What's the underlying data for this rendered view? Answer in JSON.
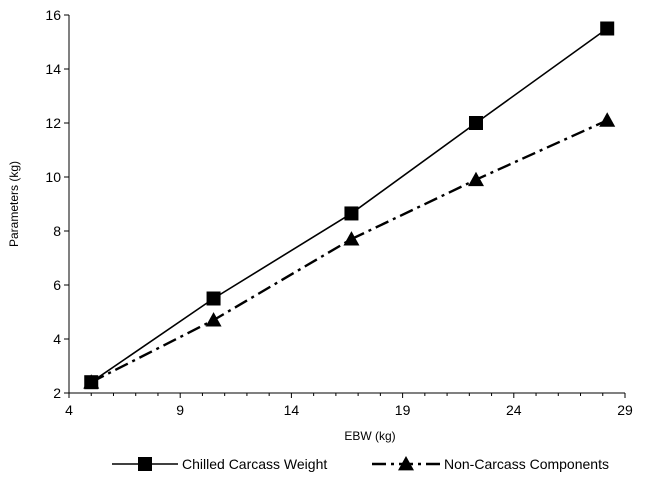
{
  "chart_data": {
    "type": "line",
    "xlabel": "EBW (kg)",
    "ylabel": "Parameters (kg)",
    "xlim": [
      4,
      29
    ],
    "ylim": [
      2,
      16
    ],
    "xticks": [
      4,
      9,
      14,
      19,
      24,
      29
    ],
    "yticks": [
      2,
      4,
      6,
      8,
      10,
      12,
      14,
      16
    ],
    "xtick_labels": [
      "4",
      "9",
      "14",
      "19",
      "24",
      "29"
    ],
    "ytick_labels": [
      "2",
      "4",
      "6",
      "8",
      "10",
      "12",
      "14",
      "16"
    ],
    "grid": false,
    "legend_position": "bottom",
    "series": [
      {
        "name": "Chilled Carcass Weight",
        "marker": "square",
        "line_style": "solid",
        "color": "#000000",
        "x": [
          5.0,
          10.5,
          16.7,
          22.3,
          28.2
        ],
        "y": [
          2.4,
          5.5,
          8.65,
          12.0,
          15.5
        ]
      },
      {
        "name": "Non-Carcass Components",
        "marker": "triangle",
        "line_style": "dash-dot",
        "color": "#000000",
        "x": [
          5.0,
          10.5,
          16.7,
          22.3,
          28.2
        ],
        "y": [
          2.4,
          4.7,
          7.7,
          9.9,
          12.1
        ]
      }
    ]
  }
}
